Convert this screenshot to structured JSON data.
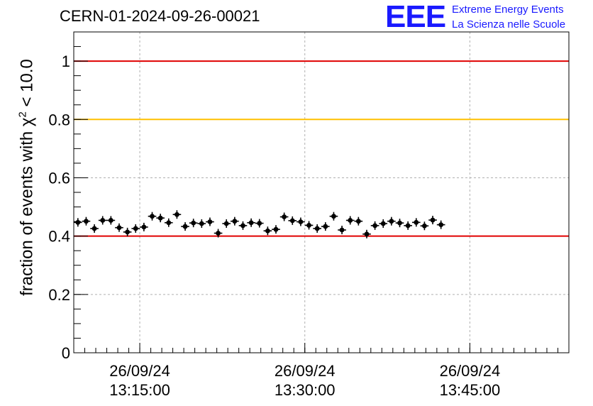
{
  "header": {
    "run_title": "CERN-01-2024-09-26-00021",
    "logo_mark": "EEE",
    "logo_line1": "Extreme Energy Events",
    "logo_line2": "La Scienza nelle Scuole"
  },
  "chart_data": {
    "type": "scatter",
    "ylabel_prefix": "fraction of events with ",
    "ylabel_chi": "χ",
    "ylabel_exp": "2",
    "ylabel_suffix": " < 10.0",
    "ylim": [
      0,
      1.1
    ],
    "xlim": [
      "2024-09-26 13:09:00",
      "2024-09-26 13:54:00"
    ],
    "yticks": [
      {
        "value": 0,
        "label": "0"
      },
      {
        "value": 0.2,
        "label": "0.2"
      },
      {
        "value": 0.4,
        "label": "0.4"
      },
      {
        "value": 0.6,
        "label": "0.6"
      },
      {
        "value": 0.8,
        "label": "0.8"
      },
      {
        "value": 1.0,
        "label": "1"
      }
    ],
    "xticks": [
      {
        "time": "2024-09-26 13:15:00",
        "date_label": "26/09/24",
        "time_label": "13:15:00"
      },
      {
        "time": "2024-09-26 13:30:00",
        "date_label": "26/09/24",
        "time_label": "13:30:00"
      },
      {
        "time": "2024-09-26 13:45:00",
        "date_label": "26/09/24",
        "time_label": "13:45:00"
      }
    ],
    "grid": true,
    "reference_lines": [
      {
        "value": 1.0,
        "color": "#e00000"
      },
      {
        "value": 0.8,
        "color": "#ffc000"
      },
      {
        "value": 0.4,
        "color": "#e00000"
      }
    ],
    "points": {
      "start": "2024-09-26 13:09:00",
      "bin_seconds": 45,
      "color": "#000000",
      "values": [
        0.447,
        0.451,
        0.426,
        0.454,
        0.454,
        0.429,
        0.414,
        0.426,
        0.431,
        0.468,
        0.462,
        0.446,
        0.474,
        0.433,
        0.445,
        0.443,
        0.449,
        0.41,
        0.443,
        0.451,
        0.436,
        0.446,
        0.444,
        0.418,
        0.423,
        0.466,
        0.453,
        0.449,
        0.437,
        0.426,
        0.433,
        0.468,
        0.421,
        0.454,
        0.451,
        0.407,
        0.436,
        0.443,
        0.451,
        0.445,
        0.436,
        0.447,
        0.435,
        0.455,
        0.439
      ]
    }
  }
}
